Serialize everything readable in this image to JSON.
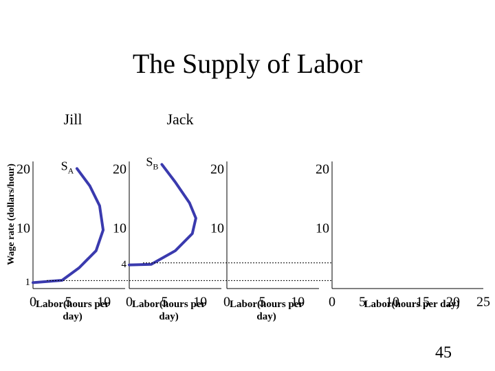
{
  "title": "The Supply of Labor",
  "y_axis_label": "Wage rate (dollars/hour)",
  "page_number": "45",
  "chart_data": [
    {
      "type": "line",
      "title": "Jill",
      "curve_label": "S",
      "curve_label_sub": "A",
      "xlabel": "Labor(hours per day)",
      "xlim": [
        0,
        13
      ],
      "xticks": [
        0,
        5,
        10
      ],
      "ylim": [
        0,
        21.5
      ],
      "yticks": [
        1,
        10,
        20
      ],
      "series": [
        {
          "color": "#3a3aae",
          "x": [
            0,
            4.1,
            6.5,
            8.9,
            9.9,
            9.4,
            8,
            6.2
          ],
          "values": [
            1,
            1.4,
            3.5,
            6.4,
            9.9,
            14,
            17.4,
            20.3
          ]
        }
      ]
    },
    {
      "type": "line",
      "title": "Jack",
      "curve_label": "S",
      "curve_label_sub": "B",
      "xlabel": "Labor(hours per day)",
      "xlim": [
        0,
        13
      ],
      "xticks": [
        0,
        5,
        10
      ],
      "ylim": [
        0,
        21.5
      ],
      "yticks": [
        4,
        10,
        20
      ],
      "series": [
        {
          "color": "#3a3aae",
          "x": [
            0,
            3.1,
            6.5,
            8.9,
            9.4,
            8.5,
            6.5,
            4.6
          ],
          "values": [
            4,
            4.1,
            6.4,
            9.3,
            11.9,
            14.5,
            18,
            21
          ]
        }
      ]
    },
    {
      "type": "line",
      "xlabel": "Labor(hours per day)",
      "xlim": [
        0,
        13
      ],
      "xticks": [
        0,
        5,
        10
      ],
      "ylim": [
        0,
        21.5
      ],
      "yticks": [
        10,
        20
      ]
    },
    {
      "type": "line",
      "xlabel": "Labor(hours per day)",
      "xlim": [
        0,
        25
      ],
      "xticks": [
        0,
        5,
        10,
        15,
        20,
        25
      ],
      "ylim": [
        0,
        21.5
      ],
      "yticks": [
        10,
        20
      ]
    }
  ]
}
